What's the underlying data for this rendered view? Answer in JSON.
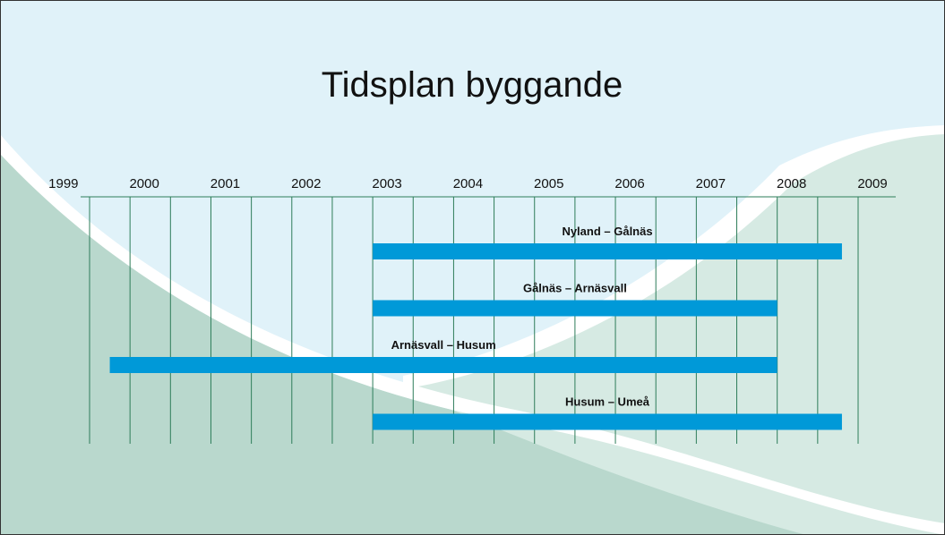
{
  "chart_data": {
    "type": "gantt",
    "title": "Tidsplan byggande",
    "xlim": [
      1999.5,
      2009
    ],
    "xticks": [
      1999,
      2000,
      2001,
      2002,
      2003,
      2004,
      2005,
      2006,
      2007,
      2008,
      2009
    ],
    "xgrid": [
      1999.5,
      2000,
      2000.5,
      2001,
      2001.5,
      2002,
      2002.5,
      2003,
      2003.5,
      2004,
      2004.5,
      2005,
      2005.5,
      2006,
      2006.5,
      2007,
      2007.5,
      2008,
      2008.5,
      2009
    ],
    "color": "#0099d8",
    "grid_color": "#2e7d5a",
    "tasks": [
      {
        "name": "Nyland – Gålnäs",
        "start": 2003,
        "end": 2008.8
      },
      {
        "name": "Gålnäs – Arnäsvall",
        "start": 2003,
        "end": 2008
      },
      {
        "name": "Arnäsvall – Husum",
        "start": 1999.75,
        "end": 2008
      },
      {
        "name": "Husum – Umeå",
        "start": 2003,
        "end": 2008.8
      }
    ]
  }
}
